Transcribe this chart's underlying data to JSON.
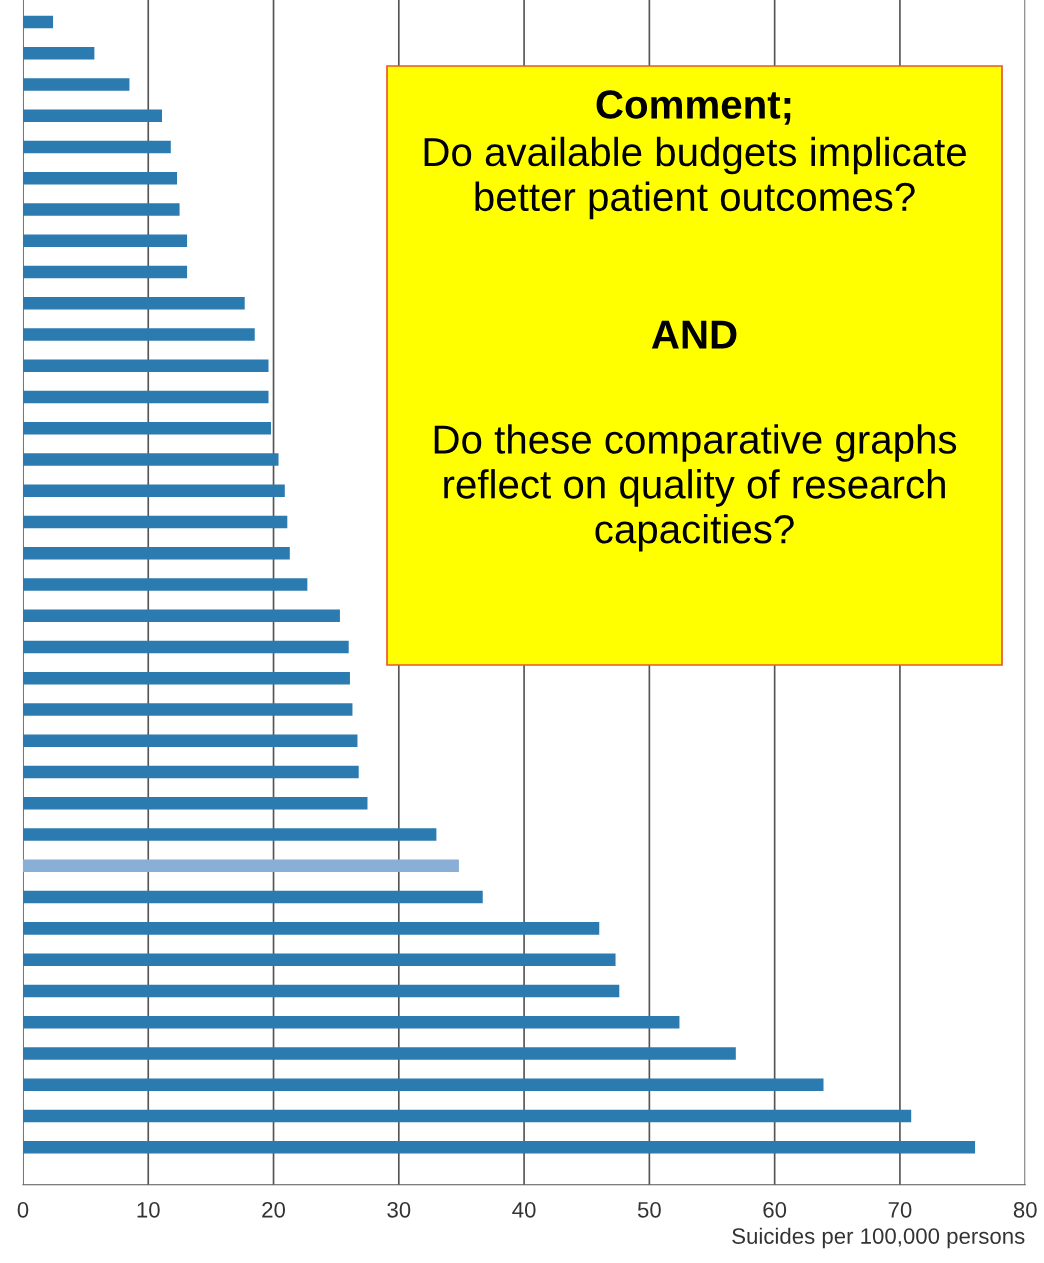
{
  "chart_data": {
    "type": "bar",
    "orientation": "horizontal",
    "xlabel": "Suicides per 100,000 persons",
    "categories": [
      null,
      null,
      null,
      null,
      null,
      null,
      null,
      null,
      null,
      null,
      null,
      null,
      null,
      null,
      null,
      null,
      null,
      null,
      null,
      null,
      null,
      null,
      null,
      null,
      null,
      null,
      null,
      null,
      null,
      null,
      null,
      null,
      null,
      null,
      null,
      null,
      null
    ],
    "values": [
      2.4,
      5.7,
      8.5,
      11.1,
      11.8,
      12.3,
      12.5,
      13.1,
      13.1,
      17.7,
      18.5,
      19.6,
      19.6,
      19.8,
      20.4,
      20.9,
      21.1,
      21.3,
      22.7,
      25.3,
      26.0,
      26.1,
      26.3,
      26.7,
      26.8,
      27.5,
      33.0,
      34.8,
      36.7,
      46.0,
      47.3,
      47.6,
      52.4,
      56.9,
      63.9,
      70.9,
      76.0
    ],
    "colors": [
      "#2b7bb0",
      "#2b7bb0",
      "#2b7bb0",
      "#2b7bb0",
      "#2b7bb0",
      "#2b7bb0",
      "#2b7bb0",
      "#2b7bb0",
      "#2b7bb0",
      "#2b7bb0",
      "#2b7bb0",
      "#2b7bb0",
      "#2b7bb0",
      "#2b7bb0",
      "#2b7bb0",
      "#2b7bb0",
      "#2b7bb0",
      "#2b7bb0",
      "#2b7bb0",
      "#2b7bb0",
      "#2b7bb0",
      "#2b7bb0",
      "#2b7bb0",
      "#2b7bb0",
      "#2b7bb0",
      "#2b7bb0",
      "#2b7bb0",
      "#8aafd6",
      "#2b7bb0",
      "#2b7bb0",
      "#2b7bb0",
      "#2b7bb0",
      "#2b7bb0",
      "#2b7bb0",
      "#2b7bb0",
      "#2b7bb0",
      "#2b7bb0"
    ],
    "xlim": [
      0,
      80
    ],
    "xticks": [
      0,
      10,
      20,
      30,
      40,
      50,
      60,
      70,
      80
    ],
    "grid": "x",
    "tick_labels": "x",
    "annotations": [
      "Comment;",
      "Do available budgets implicate better patient outcomes?",
      "AND",
      "Do these comparative graphs reflect on quality of research capacities?"
    ]
  }
}
